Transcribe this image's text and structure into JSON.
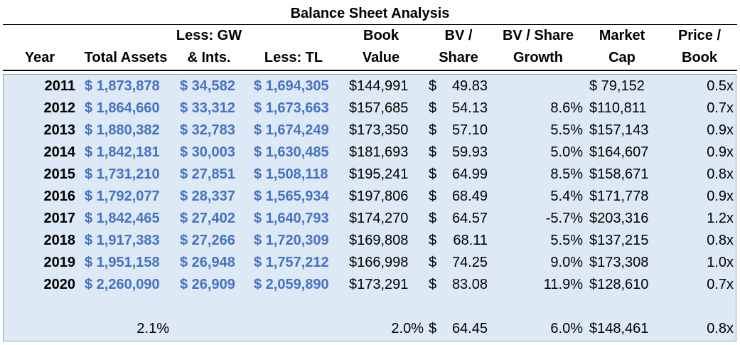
{
  "title": "Balance Sheet Analysis",
  "headers": {
    "year": [
      "",
      "Year"
    ],
    "total_assets": [
      "",
      "Total Assets"
    ],
    "less_gw": [
      "Less: GW",
      "& Ints."
    ],
    "less_tl": [
      "",
      "Less: TL"
    ],
    "book_value": [
      "Book",
      "Value"
    ],
    "bv_share": [
      "BV /",
      "Share"
    ],
    "bv_share_growth": [
      "BV / Share",
      "Growth"
    ],
    "market_cap": [
      "Market",
      "Cap"
    ],
    "price_book": [
      "Price /",
      "Book"
    ]
  },
  "rows": [
    {
      "year": "2011",
      "total_assets": "$ 1,873,878",
      "less_gw": "$ 34,582",
      "less_tl": "$ 1,694,305",
      "book_value": "$144,991",
      "bv_share": "49.83",
      "growth": "",
      "market_cap": "$  79,152",
      "price_book": "0.5x"
    },
    {
      "year": "2012",
      "total_assets": "$ 1,864,660",
      "less_gw": "$ 33,312",
      "less_tl": "$ 1,673,663",
      "book_value": "$157,685",
      "bv_share": "54.13",
      "growth": "8.6%",
      "market_cap": "$110,811",
      "price_book": "0.7x"
    },
    {
      "year": "2013",
      "total_assets": "$ 1,880,382",
      "less_gw": "$ 32,783",
      "less_tl": "$ 1,674,249",
      "book_value": "$173,350",
      "bv_share": "57.10",
      "growth": "5.5%",
      "market_cap": "$157,143",
      "price_book": "0.9x"
    },
    {
      "year": "2014",
      "total_assets": "$ 1,842,181",
      "less_gw": "$ 30,003",
      "less_tl": "$ 1,630,485",
      "book_value": "$181,693",
      "bv_share": "59.93",
      "growth": "5.0%",
      "market_cap": "$164,607",
      "price_book": "0.9x"
    },
    {
      "year": "2015",
      "total_assets": "$ 1,731,210",
      "less_gw": "$ 27,851",
      "less_tl": "$ 1,508,118",
      "book_value": "$195,241",
      "bv_share": "64.99",
      "growth": "8.5%",
      "market_cap": "$158,671",
      "price_book": "0.8x"
    },
    {
      "year": "2016",
      "total_assets": "$ 1,792,077",
      "less_gw": "$ 28,337",
      "less_tl": "$ 1,565,934",
      "book_value": "$197,806",
      "bv_share": "68.49",
      "growth": "5.4%",
      "market_cap": "$171,778",
      "price_book": "0.9x"
    },
    {
      "year": "2017",
      "total_assets": "$ 1,842,465",
      "less_gw": "$ 27,402",
      "less_tl": "$ 1,640,793",
      "book_value": "$174,270",
      "bv_share": "64.57",
      "growth": "-5.7%",
      "market_cap": "$203,316",
      "price_book": "1.2x"
    },
    {
      "year": "2018",
      "total_assets": "$ 1,917,383",
      "less_gw": "$ 27,266",
      "less_tl": "$ 1,720,309",
      "book_value": "$169,808",
      "bv_share": "68.11",
      "growth": "5.5%",
      "market_cap": "$137,215",
      "price_book": "0.8x"
    },
    {
      "year": "2019",
      "total_assets": "$ 1,951,158",
      "less_gw": "$ 26,948",
      "less_tl": "$ 1,757,212",
      "book_value": "$166,998",
      "bv_share": "74.25",
      "growth": "9.0%",
      "market_cap": "$173,308",
      "price_book": "1.0x"
    },
    {
      "year": "2020",
      "total_assets": "$ 2,260,090",
      "less_gw": "$ 26,909",
      "less_tl": "$ 2,059,890",
      "book_value": "$173,291",
      "bv_share": "83.08",
      "growth": "11.9%",
      "market_cap": "$128,610",
      "price_book": "0.7x"
    }
  ],
  "summary": {
    "total_assets": "2.1%",
    "book_value": "2.0%",
    "bv_share": "64.45",
    "growth": "6.0%",
    "market_cap": "$148,461",
    "price_book": "0.8x"
  },
  "currency_symbol": "$",
  "colors": {
    "input_blue": "#4472c4",
    "body_fill": "#dde9f4"
  }
}
